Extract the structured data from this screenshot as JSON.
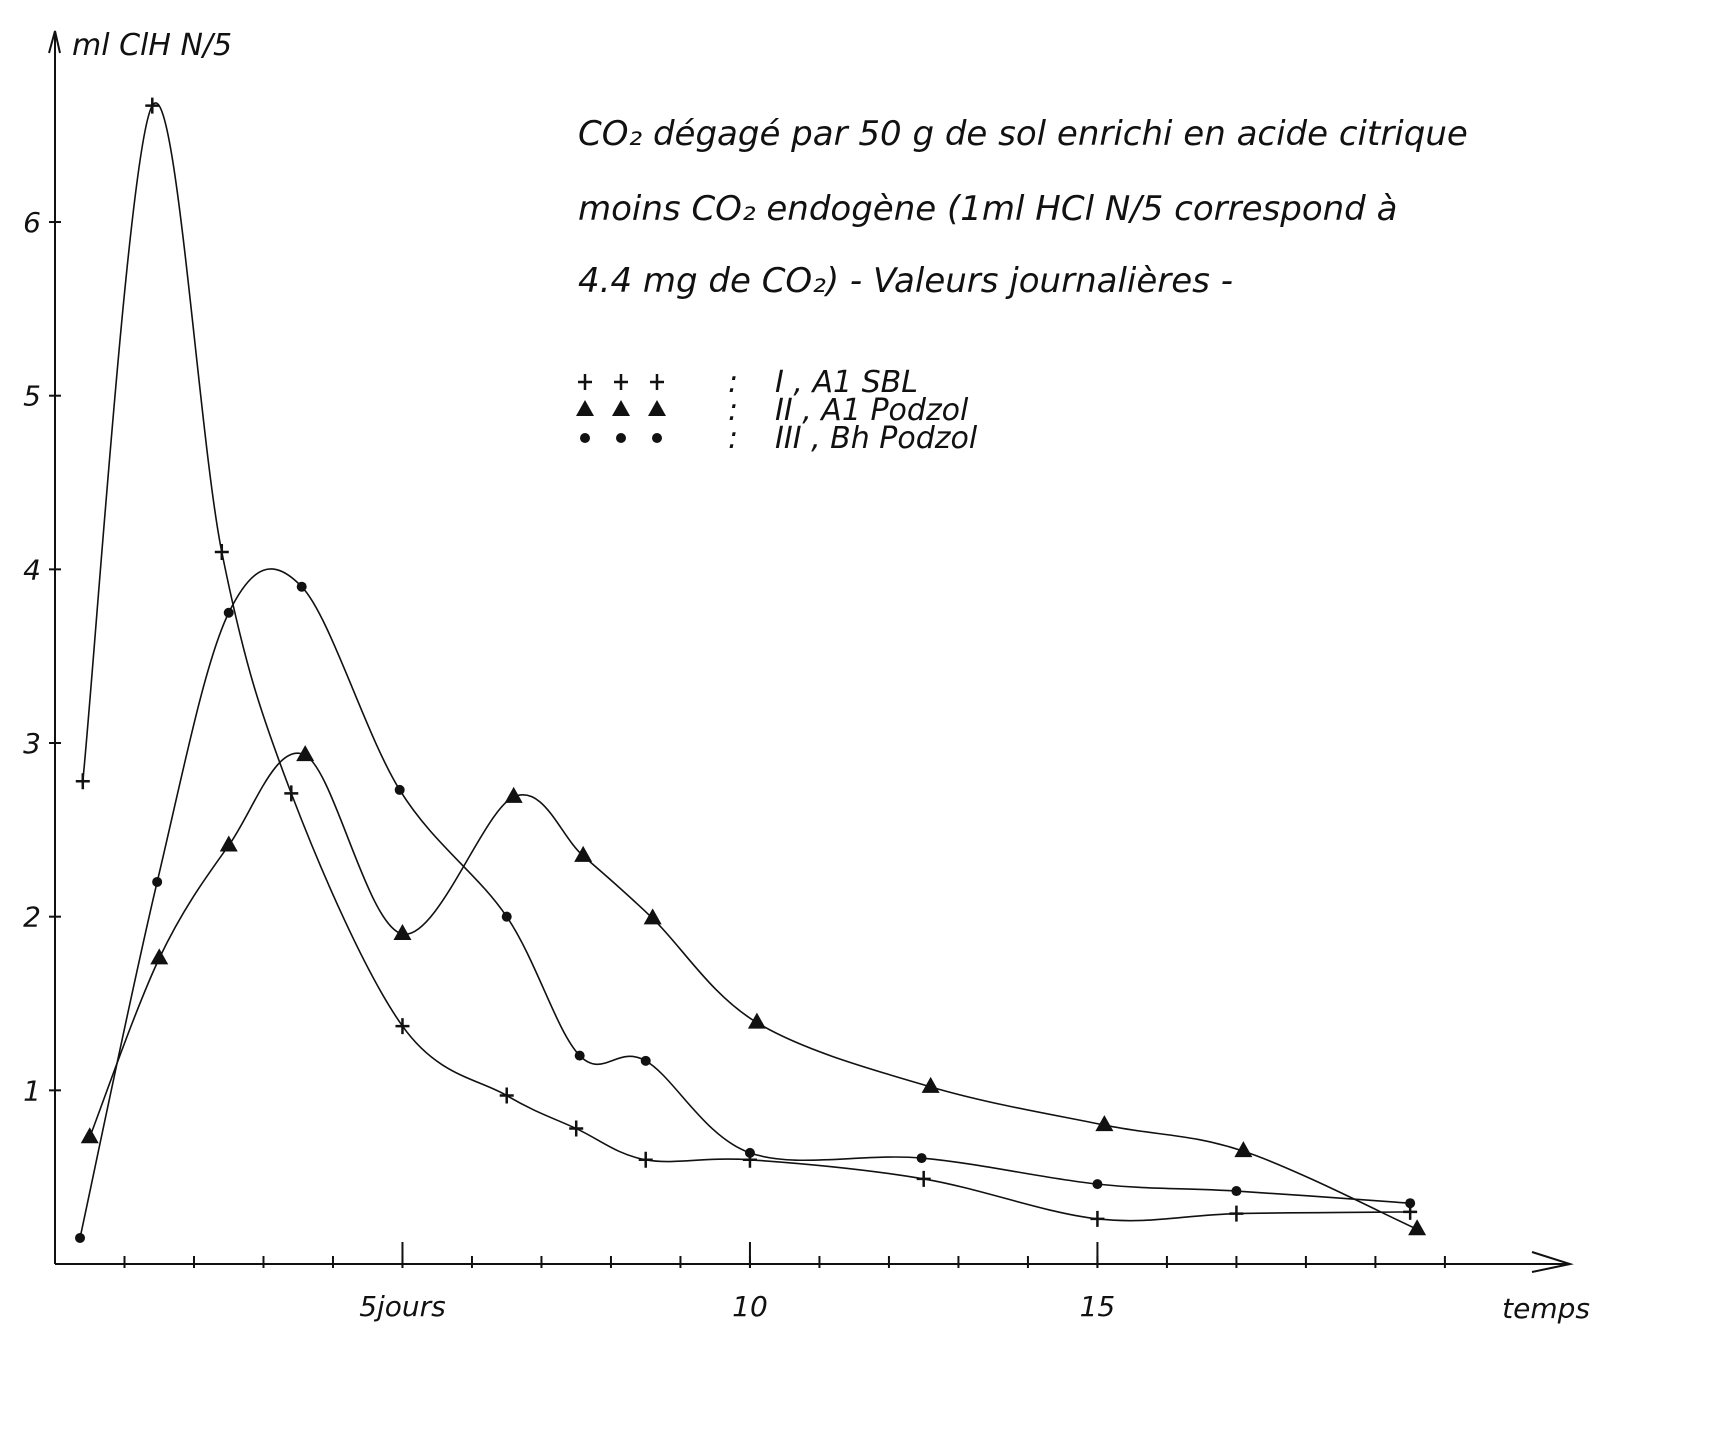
{
  "chart_data": {
    "type": "line",
    "title": [
      "CO₂ dégagé par 50 g de sol enrichi en acide citrique",
      "moins CO₂ endogène (1ml HCl N/5 correspond à",
      "4.4 mg de CO₂) - Valeurs journalières -"
    ],
    "y_label": "ml ClH N/5",
    "x_label": "temps",
    "xlim": [
      0,
      21.8
    ],
    "ylim": [
      0,
      7.1
    ],
    "xticks": [
      {
        "value": 5,
        "label": "5jours"
      },
      10,
      15
    ],
    "xminorticks": [
      1,
      2,
      3,
      4,
      5,
      6,
      7,
      8,
      9,
      10,
      11,
      12,
      13,
      14,
      15,
      16,
      17,
      18,
      19,
      20
    ],
    "yticks": [
      1,
      2,
      3,
      4,
      5,
      6
    ],
    "series": [
      {
        "name": "I , A1 SBL",
        "marker": "plus",
        "color": "#111111",
        "x": [
          0.4,
          1.4,
          2.4,
          3.4,
          5,
          6.5,
          7.5,
          8.5,
          10,
          12.5,
          15,
          17,
          19.5
        ],
        "values": [
          2.78,
          6.67,
          4.1,
          2.71,
          1.37,
          0.97,
          0.78,
          0.6,
          0.6,
          0.49,
          0.26,
          0.29,
          0.3
        ]
      },
      {
        "name": "II , A1 Podzol",
        "marker": "triangle",
        "color": "#111111",
        "x": [
          0.5,
          1.5,
          2.5,
          3.6,
          5,
          6.6,
          7.6,
          8.6,
          10.1,
          12.6,
          15.1,
          17.1,
          19.6
        ],
        "values": [
          0.73,
          1.76,
          2.41,
          2.93,
          1.9,
          2.69,
          2.35,
          1.99,
          1.39,
          1.02,
          0.8,
          0.65,
          0.2
        ]
      },
      {
        "name": "III , Bh Podzol",
        "marker": "dot",
        "color": "#111111",
        "x": [
          0.36,
          1.47,
          2.5,
          3.55,
          4.96,
          6.5,
          7.55,
          8.5,
          10,
          12.47,
          15,
          17,
          19.5
        ],
        "values": [
          0.15,
          2.2,
          3.75,
          3.9,
          2.73,
          2.0,
          1.2,
          1.17,
          0.64,
          0.61,
          0.46,
          0.42,
          0.35
        ]
      }
    ]
  }
}
